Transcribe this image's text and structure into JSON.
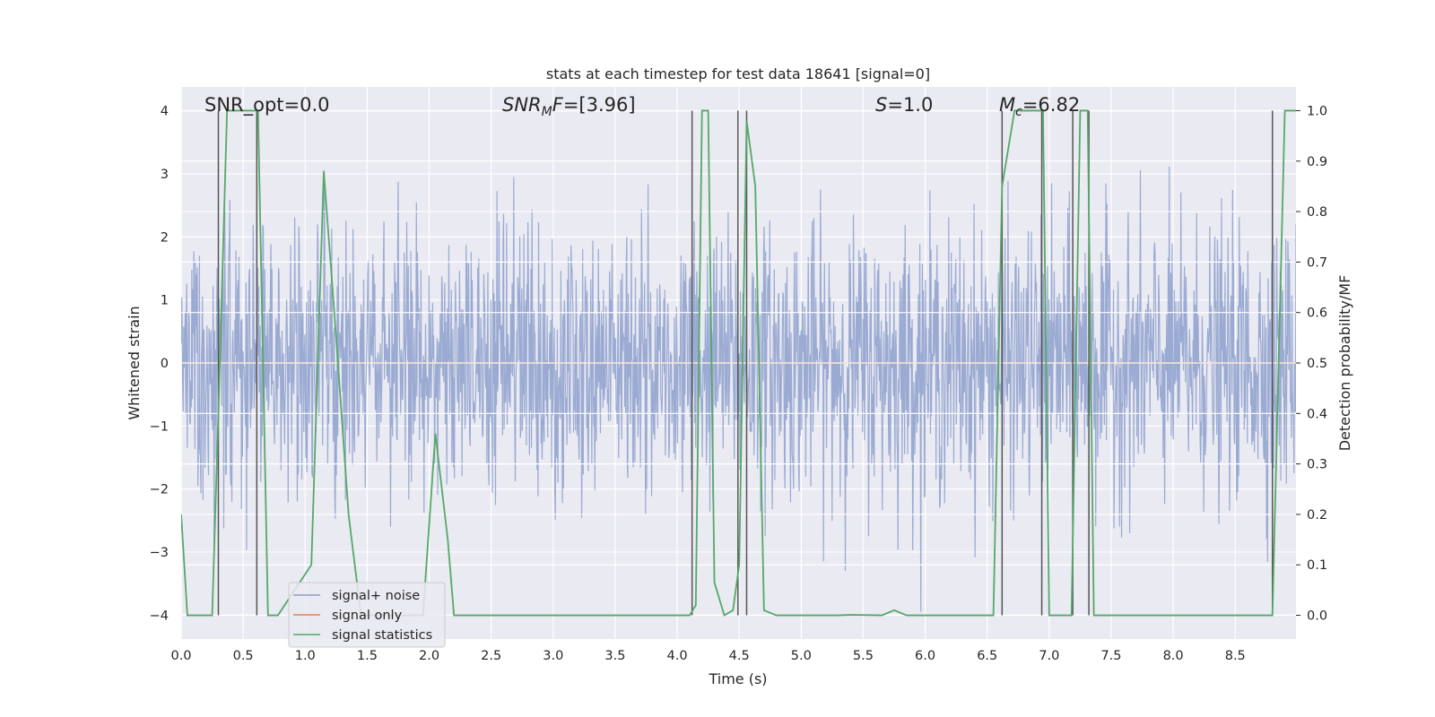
{
  "chart_data": {
    "type": "line",
    "title": "stats at each timestep for test data 18641 [signal=0]",
    "xlabel": "Time (s)",
    "ylabel_left": "Whitened strain",
    "ylabel_right": "Detection probability/MF",
    "xlim": [
      0.0,
      8.99
    ],
    "ylim_left": [
      -4.38,
      4.38
    ],
    "ylim_right": [
      -0.047,
      1.047
    ],
    "grid": true,
    "xticks": [
      "0.0",
      "0.5",
      "1.0",
      "1.5",
      "2.0",
      "2.5",
      "3.0",
      "3.5",
      "4.0",
      "4.5",
      "5.0",
      "5.5",
      "6.0",
      "6.5",
      "7.0",
      "7.5",
      "8.0",
      "8.5"
    ],
    "yticks_left": [
      "4",
      "3",
      "2",
      "1",
      "0",
      "−1",
      "−2",
      "−3",
      "−4"
    ],
    "yticks_right": [
      "1.0",
      "0.9",
      "0.8",
      "0.7",
      "0.6",
      "0.5",
      "0.4",
      "0.3",
      "0.2",
      "0.1",
      "0.0"
    ],
    "annotations": {
      "snr_opt": "SNR_opt=0.0",
      "snr_mf_main": "SNR",
      "snr_mf_sub": "M",
      "snr_mf_rest": "F=[3.96]",
      "s_main": "S",
      "s_rest": "=1.0",
      "mc_main": "M",
      "mc_sub": "c",
      "mc_rest": "=6.82"
    },
    "legend": {
      "position": "lower-left",
      "entries": [
        {
          "label": "signal+ noise",
          "color": "#8c9fcd"
        },
        {
          "label": "signal only",
          "color": "#dd8452"
        },
        {
          "label": "signal statistics",
          "color": "#55a868"
        }
      ]
    },
    "series": [
      {
        "name": "signal+ noise",
        "axis": "left",
        "kind": "noise",
        "color": "#8c9fcd",
        "duration": 8.99,
        "sigma": 1.05,
        "samples": 2200
      },
      {
        "name": "signal only",
        "axis": "left",
        "color": "#dd8452",
        "x": [
          0.0,
          8.99
        ],
        "y": [
          0.0,
          0.0
        ]
      },
      {
        "name": "signal statistics",
        "axis": "right",
        "color": "#55a868",
        "x": [
          0.0,
          0.05,
          0.25,
          0.3,
          0.37,
          0.62,
          0.7,
          0.78,
          1.05,
          1.15,
          1.25,
          1.35,
          1.45,
          1.55,
          1.95,
          2.05,
          2.15,
          2.2,
          4.1,
          4.15,
          4.2,
          4.25,
          4.3,
          4.38,
          4.45,
          4.5,
          4.56,
          4.63,
          4.7,
          4.8,
          5.3,
          5.4,
          5.65,
          5.75,
          5.85,
          6.55,
          6.62,
          6.72,
          6.95,
          7.0,
          7.18,
          7.25,
          7.31,
          7.36,
          7.45,
          8.8,
          8.9,
          8.99
        ],
        "y": [
          0.2,
          0.0,
          0.0,
          0.4,
          1.0,
          1.0,
          0.0,
          0.0,
          0.1,
          0.88,
          0.55,
          0.2,
          0.0,
          0.0,
          0.0,
          0.36,
          0.15,
          0.0,
          0.0,
          0.02,
          1.0,
          1.0,
          0.065,
          0.0,
          0.01,
          0.1,
          0.98,
          0.85,
          0.01,
          0.0,
          0.0,
          0.001,
          0.0,
          0.01,
          0.0,
          0.0,
          0.85,
          1.0,
          1.0,
          0.0,
          0.0,
          1.0,
          1.0,
          0.0,
          0.0,
          0.0,
          1.0,
          1.0
        ]
      }
    ],
    "vlines": [
      0.3,
      0.61,
      4.12,
      4.49,
      4.56,
      6.62,
      6.94,
      7.19,
      7.32,
      8.8
    ]
  }
}
